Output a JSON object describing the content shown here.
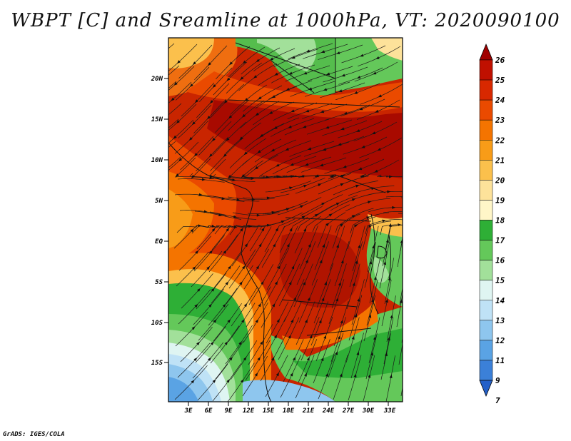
{
  "title": "WBPT [C] and Sreamline at 1000hPa, VT: 2020090100",
  "footer": "GrADS: IGES/COLA",
  "map": {
    "lat_labels": [
      "20N",
      "15N",
      "10N",
      "5N",
      "EQ",
      "5S",
      "10S",
      "15S"
    ],
    "lon_labels": [
      "3E",
      "6E",
      "9E",
      "12E",
      "15E",
      "18E",
      "21E",
      "24E",
      "27E",
      "30E",
      "33E"
    ]
  },
  "colorbar": {
    "labels": [
      "26",
      "25",
      "24",
      "23",
      "22",
      "21",
      "20",
      "19",
      "18",
      "17",
      "16",
      "15",
      "14",
      "13",
      "12",
      "11",
      "9",
      "7"
    ],
    "colors": [
      "#a00000",
      "#c01000",
      "#d82800",
      "#ea4a00",
      "#f47400",
      "#f89c18",
      "#fbc04c",
      "#fde29a",
      "#fff6c8",
      "#2eaf36",
      "#64c85a",
      "#a2e09a",
      "#dff5f2",
      "#bfe2f6",
      "#8ec6ee",
      "#5aa3e4",
      "#3b80d8",
      "#2460c8"
    ]
  }
}
